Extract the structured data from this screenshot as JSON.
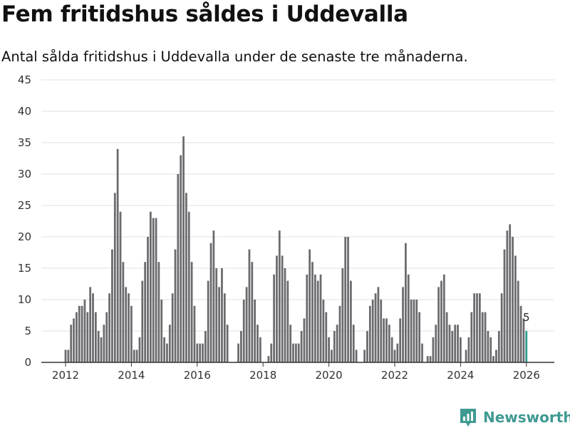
{
  "title": "Fem fritidshus såldes i Uddevalla",
  "subtitle": "Antal sålda fritidshus i Uddevalla under de senaste tre månaderna.",
  "brand": {
    "name": "Newsworthy",
    "color": "#3f9a92"
  },
  "colors": {
    "bar": "#6b6a6e",
    "highlight": "#2a9d8f",
    "grid": "#e0e0e0",
    "axis": "#333333"
  },
  "chart_data": {
    "type": "bar",
    "title": "Fem fritidshus såldes i Uddevalla",
    "subtitle": "Antal sålda fritidshus i Uddevalla under de senaste tre månaderna.",
    "xlabel": "",
    "ylabel": "",
    "ylim": [
      0,
      45
    ],
    "yticks": [
      0,
      5,
      10,
      15,
      20,
      25,
      30,
      35,
      40,
      45
    ],
    "x_start": 2012,
    "x_start_month": 1,
    "xticks": [
      2012,
      2014,
      2016,
      2018,
      2020,
      2022,
      2024,
      2026
    ],
    "grid": true,
    "series": [
      {
        "name": "Sålda fritidshus",
        "values": [
          2,
          2,
          6,
          7,
          8,
          9,
          9,
          10,
          8,
          12,
          11,
          8,
          5,
          4,
          6,
          8,
          11,
          18,
          27,
          34,
          24,
          16,
          12,
          11,
          9,
          2,
          2,
          4,
          13,
          16,
          20,
          24,
          23,
          23,
          16,
          10,
          4,
          3,
          6,
          11,
          18,
          30,
          33,
          36,
          27,
          24,
          16,
          9,
          3,
          3,
          3,
          5,
          13,
          19,
          21,
          15,
          12,
          15,
          11,
          6,
          null,
          null,
          null,
          3,
          5,
          10,
          12,
          18,
          16,
          10,
          6,
          4,
          null,
          null,
          1,
          3,
          14,
          17,
          21,
          17,
          15,
          13,
          6,
          3,
          3,
          3,
          5,
          7,
          14,
          18,
          16,
          14,
          13,
          14,
          10,
          8,
          4,
          2,
          5,
          6,
          9,
          15,
          20,
          20,
          13,
          6,
          2,
          null,
          null,
          2,
          5,
          9,
          10,
          11,
          12,
          10,
          7,
          7,
          6,
          4,
          2,
          3,
          7,
          12,
          19,
          14,
          10,
          10,
          10,
          8,
          3,
          null,
          1,
          1,
          4,
          6,
          12,
          13,
          14,
          8,
          6,
          5,
          6,
          6,
          4,
          null,
          2,
          4,
          8,
          11,
          11,
          11,
          8,
          8,
          5,
          4,
          1,
          2,
          5,
          11,
          18,
          21,
          22,
          20,
          17,
          13,
          9,
          7,
          5
        ]
      }
    ],
    "highlight_last": true,
    "annotations": [
      {
        "label": "5",
        "target": "last"
      }
    ]
  }
}
